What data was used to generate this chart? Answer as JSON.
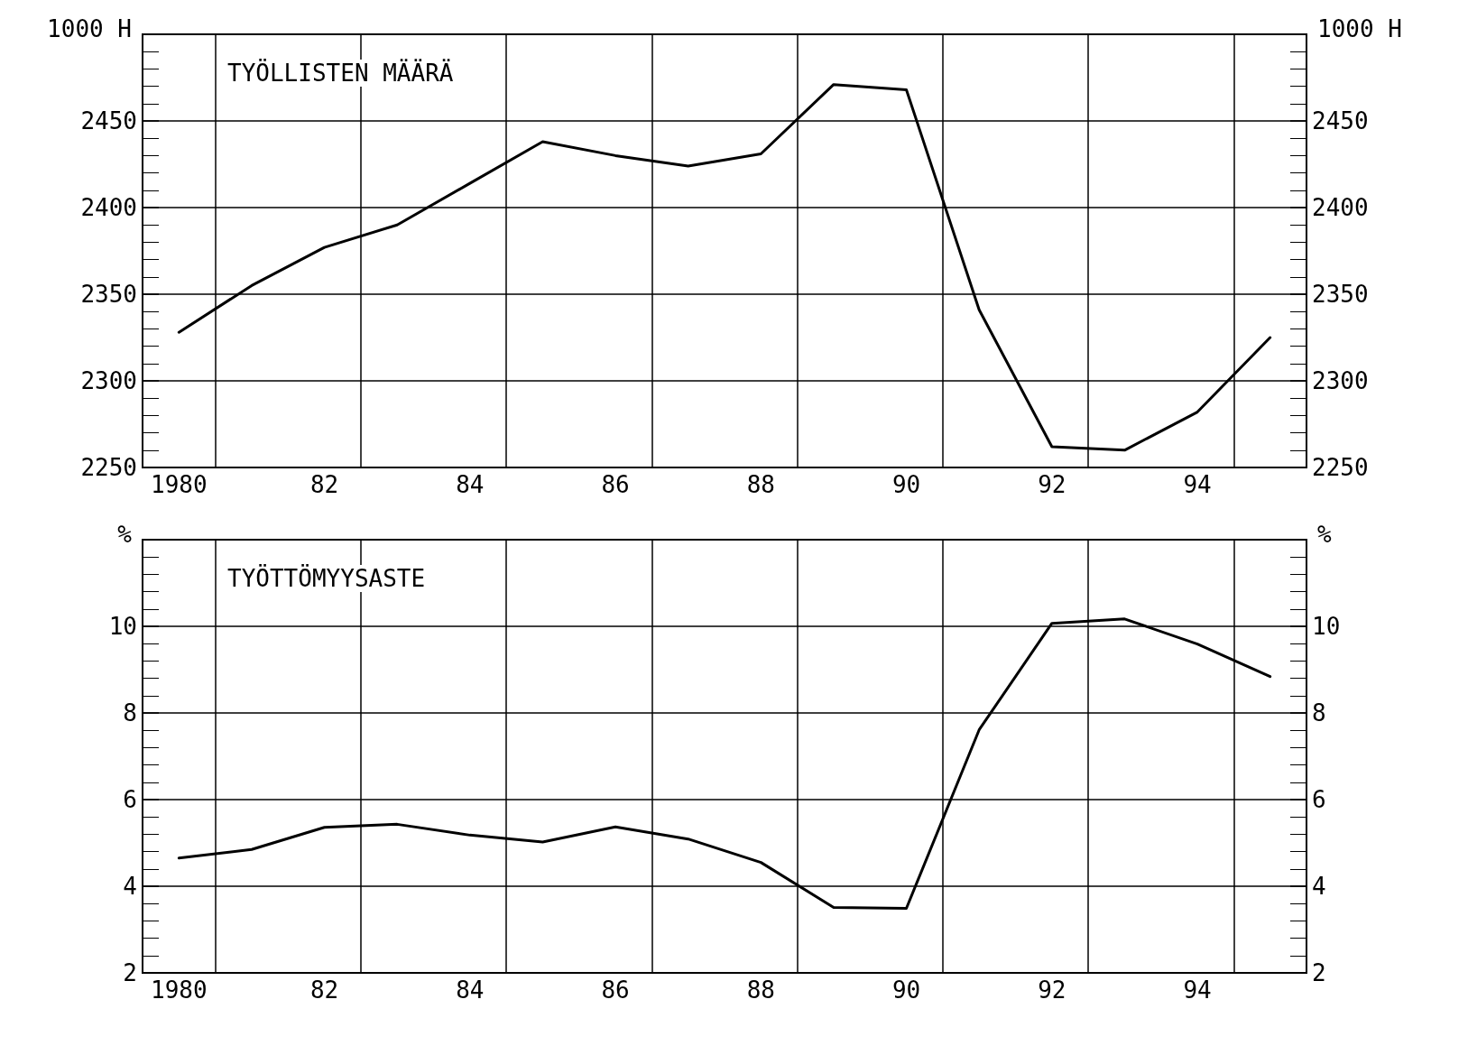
{
  "chart_data": [
    {
      "type": "line",
      "title": "TYÖLLISTEN MÄÄRÄ",
      "ylabel": "1000 H",
      "y2label": "1000 H",
      "x": [
        1980,
        1981,
        1982,
        1983,
        1984,
        1985,
        1986,
        1987,
        1988,
        1989,
        1990,
        1991,
        1992,
        1993,
        1994,
        1995
      ],
      "series": [
        {
          "color": "#000000",
          "values": [
            2328,
            2355,
            2377,
            2390,
            2414,
            2438,
            2430,
            2424,
            2431,
            2471,
            2468,
            2341,
            2262,
            2260,
            2282,
            2325
          ]
        }
      ],
      "xlim": [
        1979.5,
        1995.5
      ],
      "xticks": [
        {
          "value": 1980,
          "label": "1980"
        },
        {
          "value": 1982,
          "label": "82"
        },
        {
          "value": 1984,
          "label": "84"
        },
        {
          "value": 1986,
          "label": "86"
        },
        {
          "value": 1988,
          "label": "88"
        },
        {
          "value": 1990,
          "label": "90"
        },
        {
          "value": 1992,
          "label": "92"
        },
        {
          "value": 1994,
          "label": "94"
        },
        {
          "value": 1980.5,
          "label": null
        },
        {
          "value": 1982.5,
          "label": null
        },
        {
          "value": 1984.5,
          "label": null
        },
        {
          "value": 1986.5,
          "label": null
        },
        {
          "value": 1988.5,
          "label": null
        },
        {
          "value": 1990.5,
          "label": null
        },
        {
          "value": 1992.5,
          "label": null
        },
        {
          "value": 1994.5,
          "label": null
        }
      ],
      "ylim": [
        2250,
        2500
      ],
      "yticks": [
        2250,
        2300,
        2350,
        2400,
        2450
      ],
      "y2lim": [
        2250,
        2500
      ],
      "y2ticks": [
        2250,
        2300,
        2350,
        2400,
        2450
      ],
      "grid": true,
      "marker": "none",
      "line_style": "solid"
    },
    {
      "type": "line",
      "title": "TYÖTTÖMYYSASTE",
      "ylabel": "%",
      "y2label": "%",
      "x": [
        1980,
        1981,
        1982,
        1983,
        1984,
        1985,
        1986,
        1987,
        1988,
        1989,
        1990,
        1991,
        1992,
        1993,
        1994,
        1995
      ],
      "series": [
        {
          "color": "#000000",
          "values": [
            4.65,
            4.85,
            5.36,
            5.43,
            5.18,
            5.02,
            5.37,
            5.09,
            4.55,
            3.51,
            3.49,
            7.61,
            10.07,
            10.17,
            9.59,
            8.84
          ]
        }
      ],
      "xlim": [
        1979.5,
        1995.5
      ],
      "xticks": [
        {
          "value": 1980,
          "label": "1980"
        },
        {
          "value": 1982,
          "label": "82"
        },
        {
          "value": 1984,
          "label": "84"
        },
        {
          "value": 1986,
          "label": "86"
        },
        {
          "value": 1988,
          "label": "88"
        },
        {
          "value": 1990,
          "label": "90"
        },
        {
          "value": 1992,
          "label": "92"
        },
        {
          "value": 1994,
          "label": "94"
        },
        {
          "value": 1980.5,
          "label": null
        },
        {
          "value": 1982.5,
          "label": null
        },
        {
          "value": 1984.5,
          "label": null
        },
        {
          "value": 1986.5,
          "label": null
        },
        {
          "value": 1988.5,
          "label": null
        },
        {
          "value": 1990.5,
          "label": null
        },
        {
          "value": 1992.5,
          "label": null
        },
        {
          "value": 1994.5,
          "label": null
        }
      ],
      "ylim": [
        2,
        12
      ],
      "yticks": [
        2,
        4,
        6,
        8,
        10
      ],
      "y2lim": [
        2,
        12
      ],
      "y2ticks": [
        2,
        4,
        6,
        8,
        10
      ],
      "grid": true,
      "marker": "none",
      "line_style": "solid"
    }
  ]
}
